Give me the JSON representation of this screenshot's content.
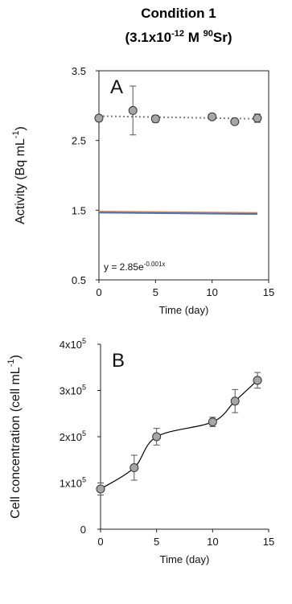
{
  "figure": {
    "title_line1": "Condition 1",
    "title_line2_prefix": "(3.1x10",
    "title_line2_exp": "-12",
    "title_line2_mid": " M ",
    "title_line2_iso": "90",
    "title_line2_suffix": "Sr)"
  },
  "chart_data": [
    {
      "type": "scatter",
      "panel_label": "A",
      "ylabel": "Activity (Bq mL",
      "ylabel_sup": "-1",
      "ylabel_end": ")",
      "xlabel": "Time (day)",
      "xlim": [
        0,
        15
      ],
      "ylim": [
        0.5,
        3.5
      ],
      "xticks": [
        0,
        5,
        10,
        15
      ],
      "yticks": [
        0.5,
        1.5,
        2.5,
        3.5
      ],
      "xtick_labels": [
        "0",
        "5",
        "10",
        "15"
      ],
      "ytick_labels": [
        "0.5",
        "1.5",
        "2.5",
        "3.5"
      ],
      "series": [
        {
          "x": [
            0,
            3,
            5,
            10,
            12,
            14
          ],
          "y": [
            2.82,
            2.93,
            2.81,
            2.84,
            2.77,
            2.82
          ],
          "error": [
            0,
            0.35,
            0.05,
            0.04,
            0.03,
            0.06
          ],
          "marker_color": "#a6a6a6"
        }
      ],
      "fit": {
        "equation_prefix": "y = 2.85e",
        "equation_exp": "-0.001x",
        "a": 2.85,
        "b": -0.001,
        "color": "#7f7f7f",
        "style": "dotted"
      },
      "reference_lines": [
        {
          "y0": 1.48,
          "y1": 1.46,
          "color": "#ed7d31"
        },
        {
          "y0": 1.465,
          "y1": 1.445,
          "color": "#4472c4"
        }
      ],
      "grid": false
    },
    {
      "type": "line",
      "panel_label": "B",
      "ylabel": "Cell concentration (cell mL",
      "ylabel_sup": "-1",
      "ylabel_end": ")",
      "xlabel": "Time (day)",
      "xlim": [
        0,
        15
      ],
      "ylim": [
        0,
        400000
      ],
      "xticks": [
        0,
        5,
        10,
        15
      ],
      "xtick_labels": [
        "0",
        "5",
        "10",
        "15"
      ],
      "yticks": [
        0,
        100000,
        200000,
        300000,
        400000
      ],
      "ytick_labels": [
        {
          "base": "0",
          "exp": ""
        },
        {
          "base": "1x10",
          "exp": "5"
        },
        {
          "base": "2x10",
          "exp": "5"
        },
        {
          "base": "3x10",
          "exp": "5"
        },
        {
          "base": "4x10",
          "exp": "5"
        }
      ],
      "series": [
        {
          "x": [
            0,
            3,
            5,
            10,
            12,
            14
          ],
          "y": [
            87000,
            133000,
            200000,
            232000,
            277000,
            322000
          ],
          "error": [
            13000,
            27000,
            18000,
            10000,
            25000,
            17000
          ],
          "marker_color": "#a6a6a6",
          "line_color": "#000000"
        }
      ],
      "grid": false
    }
  ]
}
